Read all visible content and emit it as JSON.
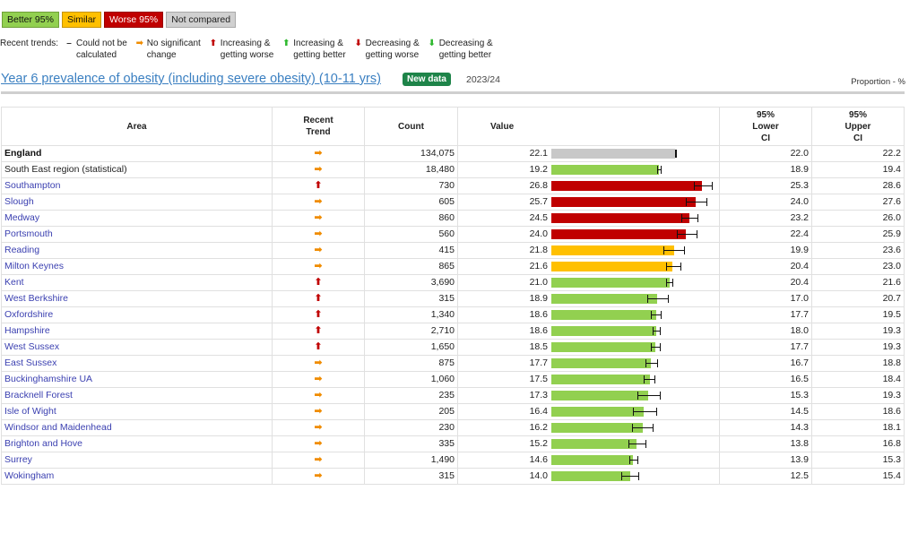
{
  "legend": {
    "better": "Better 95%",
    "similar": "Similar",
    "worse": "Worse 95%",
    "not_compared": "Not compared"
  },
  "trends": {
    "label": "Recent trends:",
    "items": [
      {
        "icon": "dash-icon",
        "glyph": "–",
        "color": "#333333",
        "text": "Could not be\ncalculated"
      },
      {
        "icon": "arrow-right-icon",
        "glyph": "➡",
        "color": "#f08c00",
        "text": "No significant\nchange"
      },
      {
        "icon": "arrow-up-icon",
        "glyph": "⬆",
        "color": "#c00000",
        "text": "Increasing &\ngetting worse"
      },
      {
        "icon": "arrow-up-icon",
        "glyph": "⬆",
        "color": "#2eb82e",
        "text": "Increasing &\ngetting better"
      },
      {
        "icon": "arrow-down-icon",
        "glyph": "⬇",
        "color": "#c00000",
        "text": "Decreasing &\ngetting worse"
      },
      {
        "icon": "arrow-down-icon",
        "glyph": "⬇",
        "color": "#2eb82e",
        "text": "Decreasing &\ngetting better"
      }
    ]
  },
  "header": {
    "title": "Year 6 prevalence of obesity (including severe obesity) (10-11 yrs)",
    "badge": "New data",
    "period": "2023/24",
    "unit": "Proportion - %"
  },
  "table": {
    "columns": {
      "area": "Area",
      "trend": "Recent\nTrend",
      "count": "Count",
      "value": "Value",
      "lower": "95%\nLower\nCI",
      "upper": "95%\nUpper\nCI"
    }
  },
  "colors": {
    "better": "#92d050",
    "similar": "#ffc000",
    "worse": "#c00000",
    "not_compared": "#c8c8c8",
    "trend_none": "#f08c00",
    "trend_worse": "#c00000"
  },
  "chart_data": {
    "type": "bar",
    "orientation": "horizontal",
    "xlim": [
      0,
      30
    ],
    "title": "Year 6 prevalence of obesity (including severe obesity) (10-11 yrs)",
    "rows": [
      {
        "area": "England",
        "trend": "none",
        "count": "134,075",
        "value": 22.1,
        "lower": 22.0,
        "upper": 22.2,
        "status": "not_compared",
        "style": "bold"
      },
      {
        "area": "South East region (statistical)",
        "trend": "none",
        "count": "18,480",
        "value": 19.2,
        "lower": 18.9,
        "upper": 19.4,
        "status": "better",
        "style": "plain"
      },
      {
        "area": "Southampton",
        "trend": "up_worse",
        "count": "730",
        "value": 26.8,
        "lower": 25.3,
        "upper": 28.6,
        "status": "worse",
        "style": "link"
      },
      {
        "area": "Slough",
        "trend": "none",
        "count": "605",
        "value": 25.7,
        "lower": 24.0,
        "upper": 27.6,
        "status": "worse",
        "style": "link"
      },
      {
        "area": "Medway",
        "trend": "none",
        "count": "860",
        "value": 24.5,
        "lower": 23.2,
        "upper": 26.0,
        "status": "worse",
        "style": "link"
      },
      {
        "area": "Portsmouth",
        "trend": "none",
        "count": "560",
        "value": 24.0,
        "lower": 22.4,
        "upper": 25.9,
        "status": "worse",
        "style": "link"
      },
      {
        "area": "Reading",
        "trend": "none",
        "count": "415",
        "value": 21.8,
        "lower": 19.9,
        "upper": 23.6,
        "status": "similar",
        "style": "link"
      },
      {
        "area": "Milton Keynes",
        "trend": "none",
        "count": "865",
        "value": 21.6,
        "lower": 20.4,
        "upper": 23.0,
        "status": "similar",
        "style": "link"
      },
      {
        "area": "Kent",
        "trend": "up_worse",
        "count": "3,690",
        "value": 21.0,
        "lower": 20.4,
        "upper": 21.6,
        "status": "better",
        "style": "link"
      },
      {
        "area": "West Berkshire",
        "trend": "up_worse",
        "count": "315",
        "value": 18.9,
        "lower": 17.0,
        "upper": 20.7,
        "status": "better",
        "style": "link"
      },
      {
        "area": "Oxfordshire",
        "trend": "up_worse",
        "count": "1,340",
        "value": 18.6,
        "lower": 17.7,
        "upper": 19.5,
        "status": "better",
        "style": "link"
      },
      {
        "area": "Hampshire",
        "trend": "up_worse",
        "count": "2,710",
        "value": 18.6,
        "lower": 18.0,
        "upper": 19.3,
        "status": "better",
        "style": "link"
      },
      {
        "area": "West Sussex",
        "trend": "up_worse",
        "count": "1,650",
        "value": 18.5,
        "lower": 17.7,
        "upper": 19.3,
        "status": "better",
        "style": "link"
      },
      {
        "area": "East Sussex",
        "trend": "none",
        "count": "875",
        "value": 17.7,
        "lower": 16.7,
        "upper": 18.8,
        "status": "better",
        "style": "link"
      },
      {
        "area": "Buckinghamshire UA",
        "trend": "none",
        "count": "1,060",
        "value": 17.5,
        "lower": 16.5,
        "upper": 18.4,
        "status": "better",
        "style": "link"
      },
      {
        "area": "Bracknell Forest",
        "trend": "none",
        "count": "235",
        "value": 17.3,
        "lower": 15.3,
        "upper": 19.3,
        "status": "better",
        "style": "link"
      },
      {
        "area": "Isle of Wight",
        "trend": "none",
        "count": "205",
        "value": 16.4,
        "lower": 14.5,
        "upper": 18.6,
        "status": "better",
        "style": "link"
      },
      {
        "area": "Windsor and Maidenhead",
        "trend": "none",
        "count": "230",
        "value": 16.2,
        "lower": 14.3,
        "upper": 18.1,
        "status": "better",
        "style": "link"
      },
      {
        "area": "Brighton and Hove",
        "trend": "none",
        "count": "335",
        "value": 15.2,
        "lower": 13.8,
        "upper": 16.8,
        "status": "better",
        "style": "link"
      },
      {
        "area": "Surrey",
        "trend": "none",
        "count": "1,490",
        "value": 14.6,
        "lower": 13.9,
        "upper": 15.3,
        "status": "better",
        "style": "link"
      },
      {
        "area": "Wokingham",
        "trend": "none",
        "count": "315",
        "value": 14.0,
        "lower": 12.5,
        "upper": 15.4,
        "status": "better",
        "style": "link"
      }
    ]
  }
}
